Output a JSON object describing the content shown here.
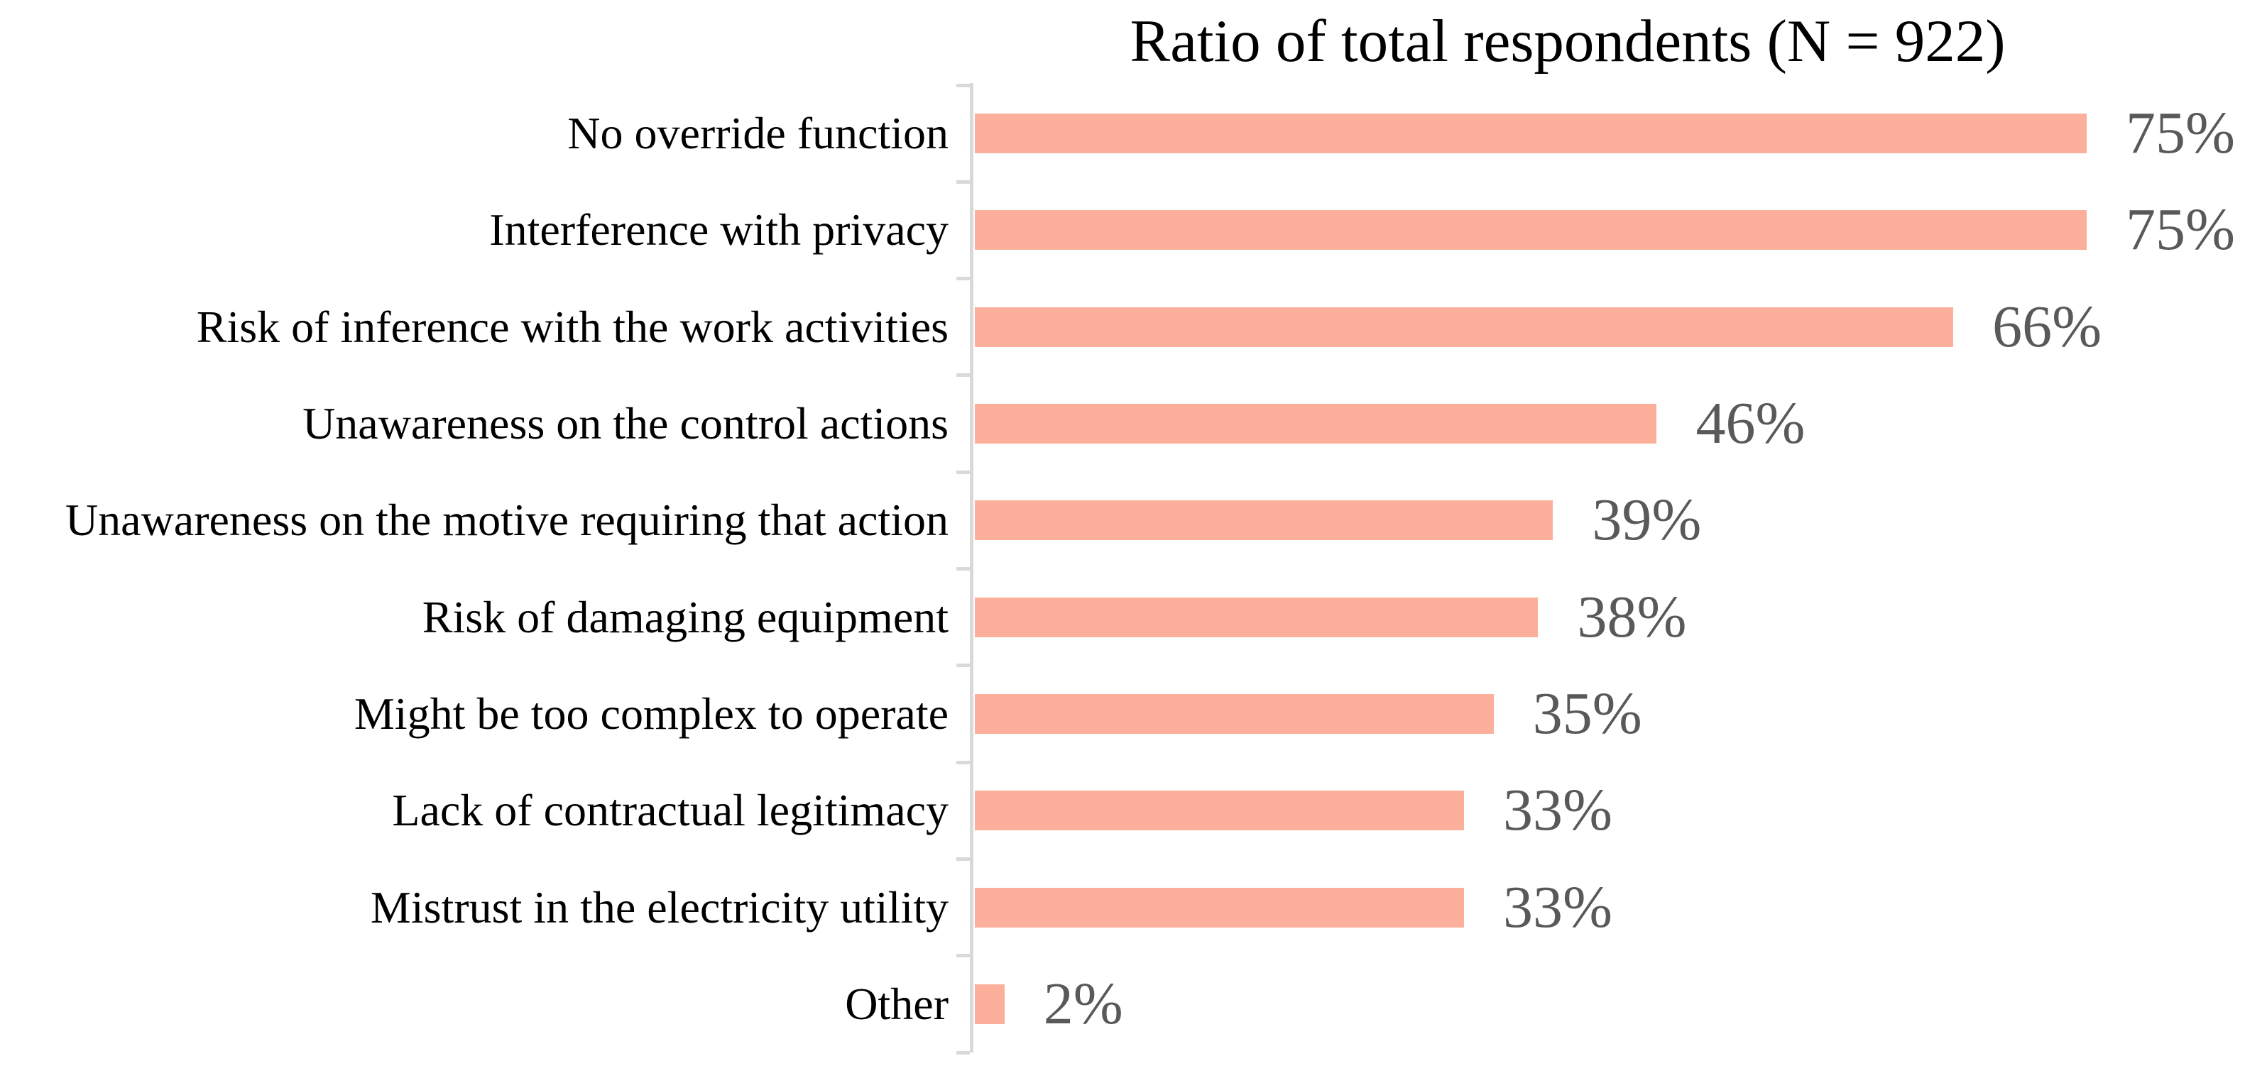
{
  "chart_data": {
    "type": "bar",
    "orientation": "horizontal",
    "title": "Ratio of total respondents (N = 922)",
    "categories": [
      "No override function",
      "Interference with privacy",
      "Risk of inference with the work activities",
      "Unawareness on the control actions",
      "Unawareness on the motive requiring that action",
      "Risk of damaging equipment",
      "Might be too complex to operate",
      "Lack of contractual legitimacy",
      "Mistrust in the electricity utility",
      "Other"
    ],
    "values": [
      75,
      75,
      66,
      46,
      39,
      38,
      35,
      33,
      33,
      2
    ],
    "value_labels": [
      "75%",
      "75%",
      "66%",
      "46%",
      "39%",
      "38%",
      "35%",
      "33%",
      "33%",
      "2%"
    ],
    "xlabel": "",
    "ylabel": "",
    "xlim": [
      0,
      86
    ],
    "grid": false,
    "legend": false,
    "colors": {
      "bar": "#FCAF9B",
      "value_label": "#595959",
      "axis": "#D9D9D9",
      "title": "#000000",
      "category_label": "#000000"
    }
  }
}
